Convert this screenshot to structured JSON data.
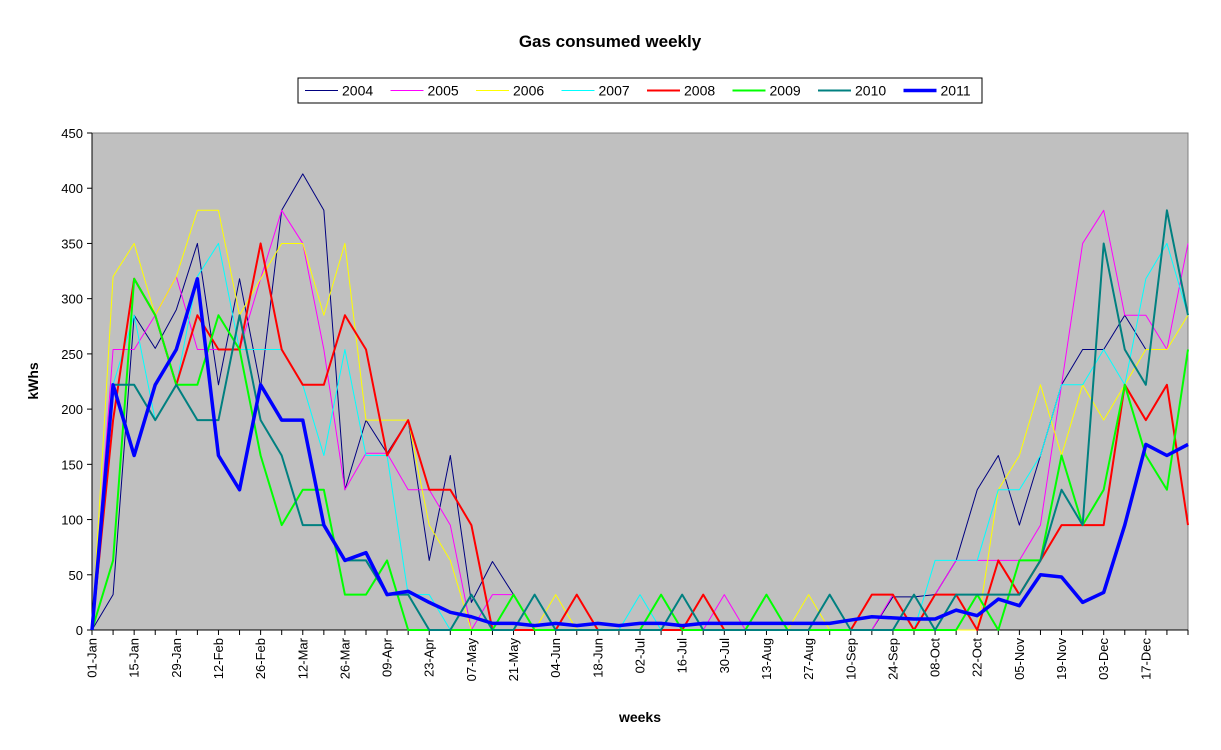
{
  "chart_data": {
    "type": "line",
    "title": "Gas consumed weekly",
    "xlabel": "weeks",
    "ylabel": "kWhs",
    "ylim": [
      0,
      450
    ],
    "yticks": [
      0,
      50,
      100,
      150,
      200,
      250,
      300,
      350,
      400,
      450
    ],
    "grid": false,
    "legend_position": "top",
    "plot_background": "#c0c0c0",
    "categories": [
      "01-Jan",
      "08-Jan",
      "15-Jan",
      "22-Jan",
      "29-Jan",
      "05-Feb",
      "12-Feb",
      "19-Feb",
      "26-Feb",
      "05-Mar",
      "12-Mar",
      "19-Mar",
      "26-Mar",
      "02-Apr",
      "09-Apr",
      "16-Apr",
      "23-Apr",
      "30-Apr",
      "07-May",
      "14-May",
      "21-May",
      "28-May",
      "04-Jun",
      "11-Jun",
      "18-Jun",
      "25-Jun",
      "02-Jul",
      "09-Jul",
      "16-Jul",
      "23-Jul",
      "30-Jul",
      "06-Aug",
      "13-Aug",
      "20-Aug",
      "27-Aug",
      "03-Sep",
      "10-Sep",
      "17-Sep",
      "24-Sep",
      "01-Oct",
      "08-Oct",
      "15-Oct",
      "22-Oct",
      "29-Oct",
      "05-Nov",
      "12-Nov",
      "19-Nov",
      "26-Nov",
      "03-Dec",
      "10-Dec",
      "17-Dec",
      "24-Dec",
      "31-Dec"
    ],
    "tick_labels": [
      "01-Jan",
      "15-Jan",
      "29-Jan",
      "12-Feb",
      "26-Feb",
      "12-Mar",
      "26-Mar",
      "09-Apr",
      "23-Apr",
      "07-May",
      "21-May",
      "04-Jun",
      "18-Jun",
      "02-Jul",
      "16-Jul",
      "30-Jul",
      "13-Aug",
      "27-Aug",
      "10-Sep",
      "24-Sep",
      "08-Oct",
      "22-Oct",
      "05-Nov",
      "19-Nov",
      "03-Dec",
      "17-Dec"
    ],
    "series": [
      {
        "name": "2004",
        "color": "#000080",
        "width": 1,
        "values": [
          0,
          32,
          285,
          255,
          290,
          350,
          222,
          318,
          220,
          380,
          413,
          380,
          127,
          190,
          160,
          190,
          63,
          158,
          25,
          62,
          32,
          0,
          0,
          0,
          0,
          0,
          0,
          0,
          0,
          0,
          0,
          0,
          0,
          0,
          0,
          0,
          0,
          0,
          30,
          30,
          32,
          63,
          127,
          158,
          95,
          158,
          222,
          254,
          254,
          285,
          254,
          null,
          null
        ]
      },
      {
        "name": "2005",
        "color": "#ff00ff",
        "width": 1,
        "values": [
          0,
          254,
          254,
          285,
          320,
          254,
          254,
          254,
          318,
          380,
          350,
          254,
          127,
          160,
          160,
          127,
          127,
          95,
          0,
          32,
          32,
          0,
          0,
          0,
          0,
          0,
          0,
          0,
          0,
          0,
          32,
          0,
          0,
          0,
          0,
          0,
          0,
          0,
          32,
          0,
          32,
          63,
          63,
          63,
          63,
          95,
          222,
          350,
          380,
          285,
          285,
          254,
          350
        ]
      },
      {
        "name": "2006",
        "color": "#ffff00",
        "width": 1,
        "values": [
          0,
          320,
          350,
          285,
          320,
          380,
          380,
          285,
          318,
          350,
          350,
          285,
          350,
          190,
          190,
          190,
          95,
          63,
          0,
          0,
          0,
          0,
          32,
          0,
          0,
          0,
          0,
          0,
          0,
          0,
          0,
          0,
          0,
          0,
          32,
          0,
          0,
          0,
          0,
          0,
          0,
          0,
          0,
          127,
          158,
          222,
          158,
          222,
          190,
          222,
          254,
          254,
          285
        ]
      },
      {
        "name": "2007",
        "color": "#00ffff",
        "width": 1,
        "values": [
          0,
          222,
          285,
          190,
          222,
          320,
          350,
          254,
          254,
          254,
          222,
          158,
          254,
          158,
          158,
          32,
          32,
          0,
          0,
          0,
          0,
          0,
          0,
          0,
          0,
          0,
          32,
          0,
          32,
          0,
          0,
          0,
          0,
          0,
          0,
          0,
          0,
          0,
          0,
          0,
          63,
          63,
          63,
          127,
          127,
          158,
          222,
          222,
          254,
          222,
          318,
          350,
          285
        ]
      },
      {
        "name": "2008",
        "color": "#ff0000",
        "width": 2,
        "values": [
          0,
          190,
          318,
          285,
          222,
          285,
          254,
          254,
          350,
          254,
          222,
          222,
          285,
          254,
          158,
          190,
          127,
          127,
          95,
          0,
          0,
          0,
          0,
          32,
          0,
          0,
          0,
          0,
          0,
          32,
          0,
          0,
          0,
          0,
          0,
          0,
          0,
          32,
          32,
          0,
          32,
          32,
          0,
          63,
          32,
          63,
          95,
          95,
          95,
          222,
          190,
          222,
          95
        ]
      },
      {
        "name": "2009",
        "color": "#00ff00",
        "width": 2,
        "values": [
          0,
          63,
          318,
          285,
          222,
          222,
          285,
          254,
          158,
          95,
          127,
          127,
          32,
          32,
          63,
          0,
          0,
          0,
          0,
          0,
          32,
          0,
          0,
          0,
          0,
          0,
          0,
          32,
          0,
          0,
          0,
          0,
          32,
          0,
          0,
          0,
          0,
          0,
          0,
          0,
          0,
          0,
          32,
          0,
          63,
          63,
          158,
          95,
          127,
          222,
          158,
          127,
          254
        ]
      },
      {
        "name": "2010",
        "color": "#008080",
        "width": 2,
        "values": [
          0,
          222,
          222,
          190,
          222,
          190,
          190,
          285,
          190,
          158,
          95,
          95,
          63,
          63,
          32,
          32,
          0,
          0,
          32,
          0,
          0,
          32,
          0,
          0,
          0,
          0,
          0,
          0,
          32,
          0,
          0,
          0,
          0,
          0,
          0,
          32,
          0,
          0,
          0,
          32,
          0,
          32,
          32,
          32,
          32,
          63,
          127,
          95,
          350,
          254,
          222,
          380,
          285
        ]
      },
      {
        "name": "2011",
        "color": "#0000ff",
        "width": 3.5,
        "values": [
          0,
          222,
          158,
          222,
          254,
          318,
          158,
          127,
          222,
          190,
          190,
          95,
          63,
          70,
          32,
          35,
          25,
          16,
          12,
          6,
          6,
          4,
          6,
          4,
          6,
          4,
          6,
          6,
          4,
          6,
          6,
          6,
          6,
          6,
          6,
          6,
          9,
          12,
          11,
          10,
          10,
          18,
          13,
          28,
          22,
          50,
          48,
          25,
          34,
          95,
          168,
          158,
          168
        ]
      }
    ]
  }
}
